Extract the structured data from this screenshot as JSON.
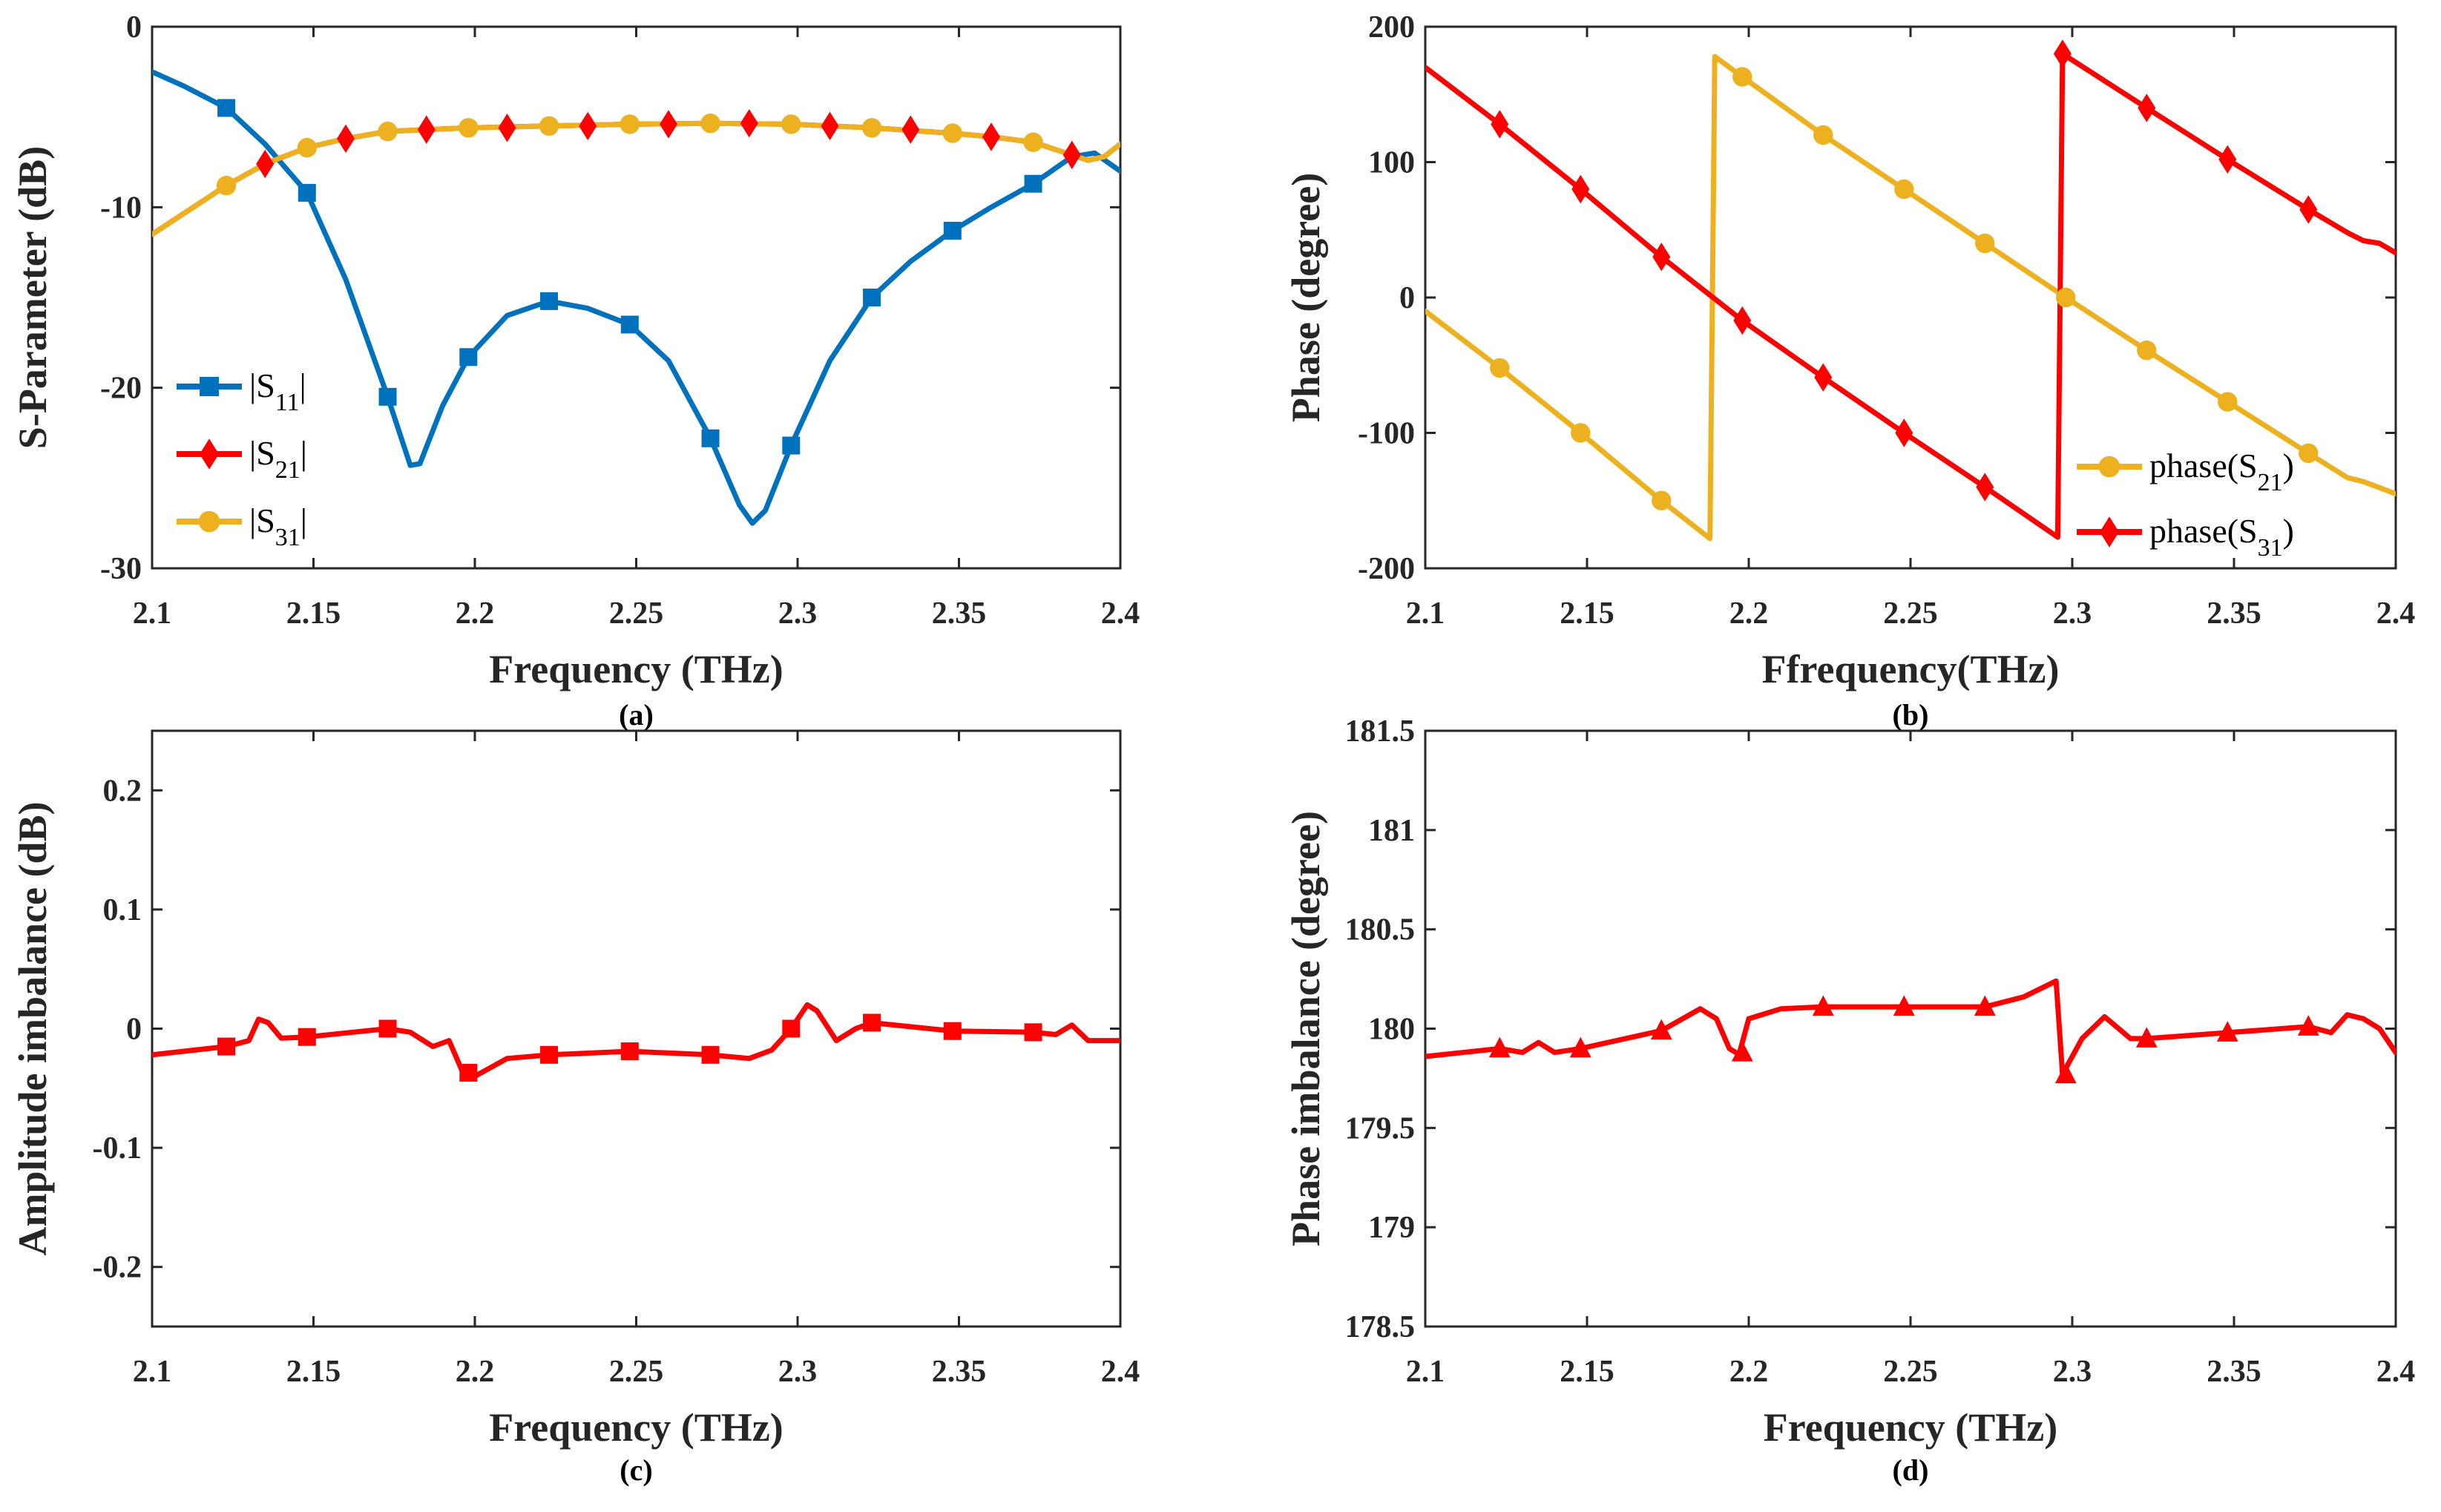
{
  "chart_data": [
    {
      "id": "a",
      "type": "line",
      "caption": "(a)",
      "xlabel": "Frequency (THz)",
      "ylabel": "S-Parameter (dB)",
      "xlim": [
        2.1,
        2.4
      ],
      "ylim": [
        -30,
        0
      ],
      "xticks": [
        "2.1",
        "2.15",
        "2.2",
        "2.25",
        "2.3",
        "2.35",
        "2.4"
      ],
      "yticks": [
        "-30",
        "-20",
        "-10",
        "0"
      ],
      "legend_placement": "left-lower",
      "series": [
        {
          "name": "|S11|",
          "leg_base": "|S",
          "leg_sub": "11",
          "leg_end": "|",
          "color": "#0072BD",
          "marker": "square",
          "x": [
            2.1,
            2.11,
            2.123,
            2.135,
            2.148,
            2.16,
            2.173,
            2.18,
            2.183,
            2.19,
            2.198,
            2.21,
            2.223,
            2.235,
            2.248,
            2.26,
            2.273,
            2.282,
            2.286,
            2.29,
            2.298,
            2.31,
            2.323,
            2.335,
            2.348,
            2.36,
            2.373,
            2.385,
            2.392,
            2.4
          ],
          "y": [
            -2.5,
            -3.3,
            -4.5,
            -6.5,
            -9.2,
            -14,
            -20.5,
            -24.3,
            -24.2,
            -21,
            -18.3,
            -16,
            -15.2,
            -15.6,
            -16.5,
            -18.5,
            -22.8,
            -26.5,
            -27.5,
            -26.8,
            -23.2,
            -18.5,
            -15,
            -13,
            -11.3,
            -10,
            -8.7,
            -7.2,
            -7,
            -8
          ],
          "markers_x": [
            2.123,
            2.148,
            2.173,
            2.198,
            2.223,
            2.248,
            2.273,
            2.298,
            2.323,
            2.348,
            2.373
          ],
          "markers_y": [
            -4.5,
            -9.2,
            -20.5,
            -18.3,
            -15.2,
            -16.5,
            -22.8,
            -23.2,
            -15,
            -11.3,
            -8.7
          ]
        },
        {
          "name": "|S21|",
          "leg_base": "|S",
          "leg_sub": "21",
          "leg_end": "|",
          "color": "#FF0000",
          "marker": "diamond",
          "x": [
            2.1,
            2.123,
            2.135,
            2.148,
            2.16,
            2.173,
            2.185,
            2.198,
            2.223,
            2.248,
            2.273,
            2.298,
            2.323,
            2.348,
            2.36,
            2.373,
            2.385,
            2.39,
            2.395,
            2.4
          ],
          "y": [
            -11.5,
            -8.8,
            -7.6,
            -6.7,
            -6.2,
            -5.8,
            -5.7,
            -5.6,
            -5.5,
            -5.4,
            -5.35,
            -5.4,
            -5.6,
            -5.9,
            -6.1,
            -6.4,
            -7.1,
            -7.4,
            -7.2,
            -6.5
          ],
          "markers_x": [
            2.135,
            2.16,
            2.185,
            2.21,
            2.235,
            2.26,
            2.285,
            2.31,
            2.335,
            2.36,
            2.385
          ],
          "markers_y": [
            -7.6,
            -6.2,
            -5.7,
            -5.6,
            -5.5,
            -5.4,
            -5.35,
            -5.5,
            -5.7,
            -6.1,
            -7.1
          ]
        },
        {
          "name": "|S31|",
          "leg_base": "|S",
          "leg_sub": "31",
          "leg_end": "|",
          "color": "#EDB120",
          "marker": "circle",
          "x": [
            2.1,
            2.123,
            2.135,
            2.148,
            2.16,
            2.173,
            2.185,
            2.198,
            2.223,
            2.248,
            2.273,
            2.298,
            2.323,
            2.348,
            2.36,
            2.373,
            2.385,
            2.39,
            2.395,
            2.4
          ],
          "y": [
            -11.5,
            -8.8,
            -7.6,
            -6.7,
            -6.2,
            -5.8,
            -5.7,
            -5.6,
            -5.5,
            -5.4,
            -5.35,
            -5.4,
            -5.6,
            -5.9,
            -6.1,
            -6.4,
            -7.1,
            -7.4,
            -7.2,
            -6.5
          ],
          "markers_x": [
            2.123,
            2.148,
            2.173,
            2.198,
            2.223,
            2.248,
            2.273,
            2.298,
            2.323,
            2.348,
            2.373
          ],
          "markers_y": [
            -8.8,
            -6.7,
            -5.8,
            -5.6,
            -5.5,
            -5.4,
            -5.35,
            -5.4,
            -5.6,
            -5.9,
            -6.4
          ]
        }
      ]
    },
    {
      "id": "b",
      "type": "line",
      "caption": "(b)",
      "xlabel": "Ffrequency(THz)",
      "ylabel": "Phase (degree)",
      "xlim": [
        2.1,
        2.4
      ],
      "ylim": [
        -200,
        200
      ],
      "xticks": [
        "2.1",
        "2.15",
        "2.2",
        "2.25",
        "2.3",
        "2.35",
        "2.4"
      ],
      "yticks": [
        "-200",
        "-100",
        "0",
        "100",
        "200"
      ],
      "legend_placement": "bottom-right",
      "series": [
        {
          "name": "phase(S21)",
          "leg_base": "phase(S",
          "leg_sub": "21",
          "leg_end": ")",
          "color": "#EDB120",
          "marker": "circle",
          "x": [
            2.1,
            2.123,
            2.148,
            2.173,
            2.188,
            2.1895,
            2.198,
            2.223,
            2.248,
            2.273,
            2.298,
            2.323,
            2.348,
            2.373,
            2.385,
            2.39,
            2.4
          ],
          "y": [
            -10,
            -52,
            -100,
            -150,
            -178,
            178,
            163,
            120,
            80,
            40,
            0,
            -39,
            -77,
            -115,
            -133,
            -136,
            -145
          ],
          "markers_x": [
            2.123,
            2.148,
            2.173,
            2.198,
            2.223,
            2.248,
            2.273,
            2.298,
            2.323,
            2.348,
            2.373
          ],
          "markers_y": [
            -52,
            -100,
            -150,
            163,
            120,
            80,
            40,
            0,
            -39,
            -77,
            -115
          ]
        },
        {
          "name": "phase(S31)",
          "leg_base": "phase(S",
          "leg_sub": "31",
          "leg_end": ")",
          "color": "#FF0000",
          "marker": "diamond",
          "x": [
            2.1,
            2.123,
            2.148,
            2.173,
            2.198,
            2.223,
            2.248,
            2.273,
            2.2955,
            2.297,
            2.323,
            2.348,
            2.373,
            2.385,
            2.39,
            2.395,
            2.4
          ],
          "y": [
            170,
            128,
            80,
            30,
            -17,
            -59,
            -100,
            -140,
            -177,
            180,
            140,
            102,
            65,
            48,
            42,
            40,
            33
          ],
          "markers_x": [
            2.123,
            2.148,
            2.173,
            2.198,
            2.223,
            2.248,
            2.273,
            2.297,
            2.323,
            2.348,
            2.373
          ],
          "markers_y": [
            128,
            80,
            30,
            -17,
            -59,
            -100,
            -140,
            180,
            140,
            102,
            65
          ]
        }
      ]
    },
    {
      "id": "c",
      "type": "line",
      "caption": "(c)",
      "xlabel": "Frequency (THz)",
      "ylabel": "Amplitude imbalance (dB)",
      "xlim": [
        2.1,
        2.4
      ],
      "ylim": [
        -0.25,
        0.25
      ],
      "xticks": [
        "2.1",
        "2.15",
        "2.2",
        "2.25",
        "2.3",
        "2.35",
        "2.4"
      ],
      "yticks": [
        "-0.2",
        "-0.1",
        "0",
        "0.1",
        "0.2"
      ],
      "series": [
        {
          "name": "amplitude imbalance",
          "color": "#FF0000",
          "marker": "square",
          "x": [
            2.1,
            2.123,
            2.13,
            2.133,
            2.136,
            2.14,
            2.148,
            2.173,
            2.18,
            2.187,
            2.192,
            2.196,
            2.2,
            2.21,
            2.223,
            2.248,
            2.273,
            2.285,
            2.292,
            2.298,
            2.303,
            2.306,
            2.312,
            2.318,
            2.323,
            2.348,
            2.373,
            2.38,
            2.385,
            2.39,
            2.4
          ],
          "y": [
            -0.022,
            -0.015,
            -0.01,
            0.008,
            0.005,
            -0.008,
            -0.007,
            0,
            -0.003,
            -0.015,
            -0.01,
            -0.035,
            -0.04,
            -0.025,
            -0.022,
            -0.019,
            -0.022,
            -0.025,
            -0.018,
            0,
            0.02,
            0.015,
            -0.01,
            0,
            0.005,
            -0.002,
            -0.003,
            -0.005,
            0.003,
            -0.01,
            -0.01
          ],
          "markers_x": [
            2.123,
            2.148,
            2.173,
            2.198,
            2.223,
            2.248,
            2.273,
            2.298,
            2.323,
            2.348,
            2.373
          ],
          "markers_y": [
            -0.015,
            -0.007,
            0,
            -0.037,
            -0.022,
            -0.019,
            -0.022,
            0,
            0.005,
            -0.002,
            -0.003
          ]
        }
      ]
    },
    {
      "id": "d",
      "type": "line",
      "caption": "(d)",
      "xlabel": "Frequency (THz)",
      "ylabel": "Phase imbalance (degree)",
      "xlim": [
        2.1,
        2.4
      ],
      "ylim": [
        178.5,
        181.5
      ],
      "xticks": [
        "2.1",
        "2.15",
        "2.2",
        "2.25",
        "2.3",
        "2.35",
        "2.4"
      ],
      "yticks": [
        "178.5",
        "179",
        "179.5",
        "180",
        "180.5",
        "181",
        "181.5"
      ],
      "series": [
        {
          "name": "phase imbalance",
          "color": "#FF0000",
          "marker": "triangle",
          "x": [
            2.1,
            2.123,
            2.13,
            2.135,
            2.14,
            2.148,
            2.173,
            2.185,
            2.19,
            2.194,
            2.197,
            2.2,
            2.21,
            2.223,
            2.248,
            2.273,
            2.285,
            2.295,
            2.297,
            2.303,
            2.31,
            2.318,
            2.323,
            2.348,
            2.373,
            2.38,
            2.385,
            2.39,
            2.395,
            2.4
          ],
          "y": [
            179.86,
            179.9,
            179.88,
            179.93,
            179.88,
            179.9,
            179.99,
            180.1,
            180.05,
            179.9,
            179.87,
            180.05,
            180.1,
            180.11,
            180.11,
            180.11,
            180.16,
            180.24,
            179.77,
            179.95,
            180.06,
            179.95,
            179.95,
            179.98,
            180.01,
            179.98,
            180.07,
            180.05,
            180.0,
            179.88
          ],
          "markers_x": [
            2.123,
            2.148,
            2.173,
            2.198,
            2.223,
            2.248,
            2.273,
            2.298,
            2.323,
            2.348,
            2.373
          ],
          "markers_y": [
            179.9,
            179.9,
            179.99,
            179.88,
            180.11,
            180.11,
            180.11,
            179.77,
            179.95,
            179.98,
            180.01
          ]
        }
      ]
    }
  ]
}
